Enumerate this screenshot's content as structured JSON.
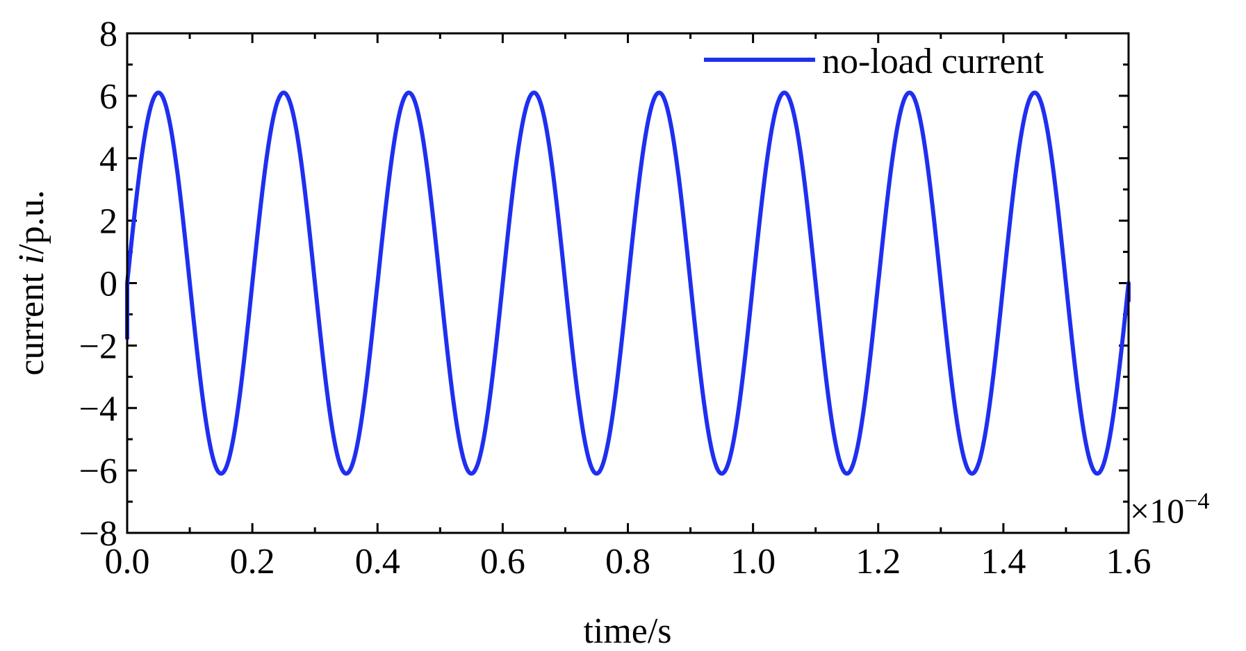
{
  "chart_data": {
    "type": "line",
    "title": "",
    "xlabel": "time/s",
    "ylabel": {
      "prefix": "current ",
      "symbol": "i",
      "suffix": "/p.u."
    },
    "x_multiplier": {
      "base": "×10",
      "exponent": "−4"
    },
    "xlim": [
      0.0,
      1.6
    ],
    "ylim": [
      -8,
      8
    ],
    "x_ticks": [
      "0.0",
      "0.2",
      "0.4",
      "0.6",
      "0.8",
      "1.0",
      "1.2",
      "1.4",
      "1.6"
    ],
    "x_tick_values": [
      0.0,
      0.2,
      0.4,
      0.6,
      0.8,
      1.0,
      1.2,
      1.4,
      1.6
    ],
    "y_ticks": [
      "8",
      "6",
      "4",
      "2",
      "0",
      "−2",
      "−4",
      "−6",
      "−8"
    ],
    "y_tick_values": [
      8,
      6,
      4,
      2,
      0,
      -2,
      -4,
      -6,
      -8
    ],
    "grid": false,
    "legend_position": "top-right",
    "series": [
      {
        "name": "no-load current",
        "color": "#1f2ff0",
        "waveform": "sine",
        "amplitude": 6.1,
        "period": 0.2,
        "phase_start": -0.25,
        "peaks_at": [
          0.05,
          0.25,
          0.45,
          0.65,
          0.85,
          1.05,
          1.25,
          1.45
        ],
        "troughs_at": [
          0.15,
          0.35,
          0.55,
          0.75,
          0.95,
          1.15,
          1.35,
          1.55
        ],
        "y_start": -1.8,
        "y_end": -0.6
      }
    ]
  }
}
